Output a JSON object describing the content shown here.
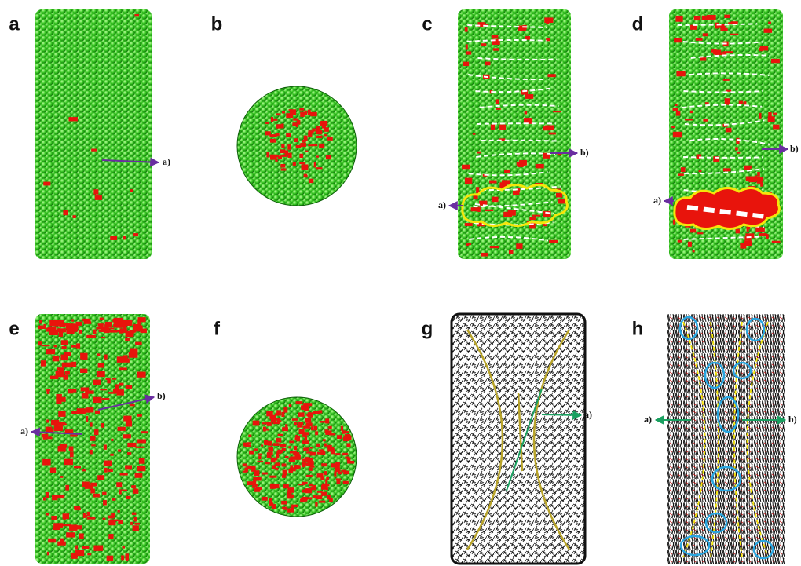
{
  "panels": [
    {
      "label": "a",
      "annotations": [
        "a)"
      ]
    },
    {
      "label": "b",
      "annotations": []
    },
    {
      "label": "c",
      "annotations": [
        "b)",
        "a)"
      ]
    },
    {
      "label": "d",
      "annotations": [
        "b)",
        "a)"
      ]
    },
    {
      "label": "e",
      "annotations": [
        "b)",
        "a)"
      ]
    },
    {
      "label": "f",
      "annotations": []
    },
    {
      "label": "g",
      "annotations": [
        "a)"
      ]
    },
    {
      "label": "h",
      "annotations": [
        "a)",
        "b)"
      ]
    }
  ]
}
